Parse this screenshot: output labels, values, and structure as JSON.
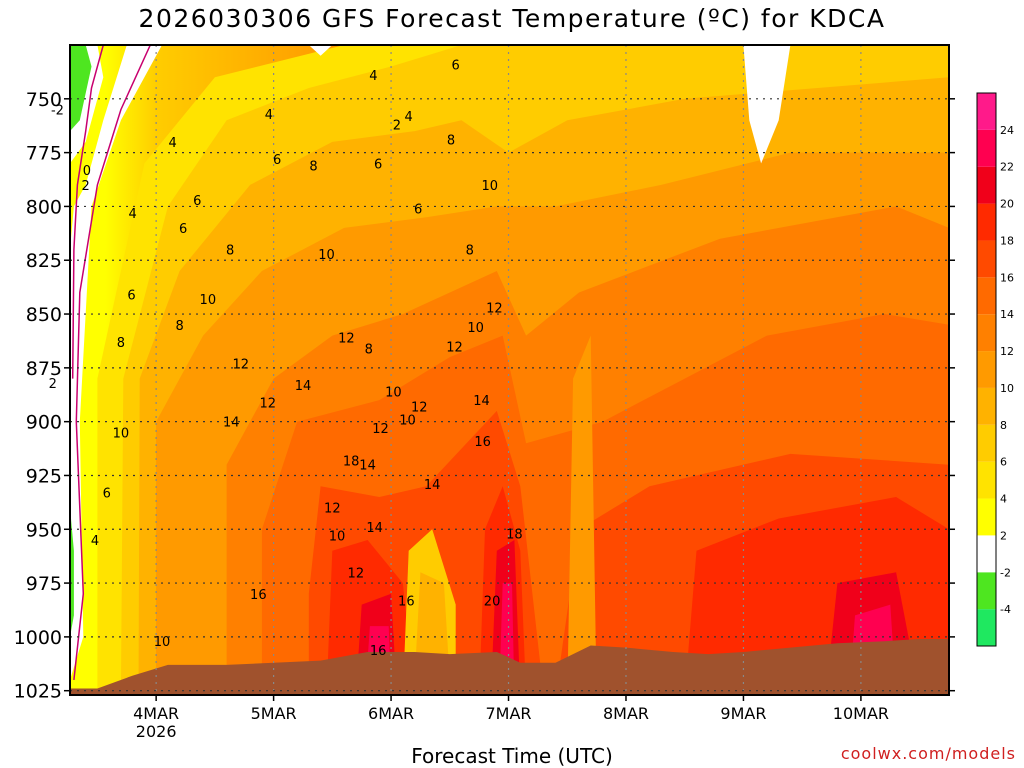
{
  "chart_data": {
    "type": "heatmap",
    "title": "2026030306 GFS Forecast Temperature (ºC) for KDCA",
    "xlabel": "Forecast Time (UTC)",
    "ylabel": "",
    "x_tick_labels": [
      "4MAR",
      "5MAR",
      "6MAR",
      "7MAR",
      "8MAR",
      "9MAR",
      "10MAR"
    ],
    "x_year_label": "2026",
    "y_tick_labels": [
      "750",
      "775",
      "800",
      "825",
      "850",
      "875",
      "900",
      "925",
      "950",
      "975",
      "1000",
      "1025"
    ],
    "y_range_hPa": [
      725,
      1027
    ],
    "y_reversed": true,
    "grid": true,
    "colorbar": {
      "labels": [
        "24",
        "22",
        "20",
        "18",
        "16",
        "14",
        "12",
        "10",
        "8",
        "6",
        "4",
        "2",
        "-2",
        "-4"
      ],
      "levels": [
        -6,
        -4,
        -2,
        2,
        4,
        6,
        8,
        10,
        12,
        14,
        16,
        18,
        20,
        22,
        24,
        26
      ],
      "colors": [
        "#1fe860",
        "#4ee620",
        "#ffffff",
        "#ffff00",
        "#ffe300",
        "#ffcc00",
        "#ffb200",
        "#ff9a00",
        "#ff8000",
        "#ff6a00",
        "#ff4a00",
        "#ff2a00",
        "#f0001a",
        "#ff0050",
        "#ff1a8a"
      ]
    },
    "contour_labels": [
      {
        "value": "-2",
        "x_day": 3.16,
        "p": 755
      },
      {
        "value": "0",
        "x_day": 3.41,
        "p": 783
      },
      {
        "value": "2",
        "x_day": 3.4,
        "p": 790
      },
      {
        "value": "2",
        "x_day": 3.12,
        "p": 882
      },
      {
        "value": "4",
        "x_day": 3.48,
        "p": 955
      },
      {
        "value": "4",
        "x_day": 3.8,
        "p": 803
      },
      {
        "value": "4",
        "x_day": 4.14,
        "p": 770
      },
      {
        "value": "4",
        "x_day": 4.96,
        "p": 757
      },
      {
        "value": "4",
        "x_day": 5.85,
        "p": 739
      },
      {
        "value": "2",
        "x_day": 6.05,
        "p": 762
      },
      {
        "value": "4",
        "x_day": 6.15,
        "p": 758
      },
      {
        "value": "6",
        "x_day": 3.58,
        "p": 933
      },
      {
        "value": "6",
        "x_day": 3.79,
        "p": 841
      },
      {
        "value": "6",
        "x_day": 4.23,
        "p": 810
      },
      {
        "value": "6",
        "x_day": 4.35,
        "p": 797
      },
      {
        "value": "6",
        "x_day": 5.03,
        "p": 778
      },
      {
        "value": "6",
        "x_day": 5.89,
        "p": 780
      },
      {
        "value": "6",
        "x_day": 6.55,
        "p": 734
      },
      {
        "value": "6",
        "x_day": 6.23,
        "p": 801
      },
      {
        "value": "8",
        "x_day": 3.7,
        "p": 863
      },
      {
        "value": "8",
        "x_day": 4.2,
        "p": 855
      },
      {
        "value": "8",
        "x_day": 4.63,
        "p": 820
      },
      {
        "value": "8",
        "x_day": 5.34,
        "p": 781
      },
      {
        "value": "8",
        "x_day": 5.81,
        "p": 866
      },
      {
        "value": "8",
        "x_day": 6.51,
        "p": 769
      },
      {
        "value": "8",
        "x_day": 6.67,
        "p": 820
      },
      {
        "value": "10",
        "x_day": 3.7,
        "p": 905
      },
      {
        "value": "10",
        "x_day": 4.05,
        "p": 1002
      },
      {
        "value": "10",
        "x_day": 4.44,
        "p": 843
      },
      {
        "value": "10",
        "x_day": 5.45,
        "p": 822
      },
      {
        "value": "10",
        "x_day": 5.54,
        "p": 953
      },
      {
        "value": "10",
        "x_day": 6.02,
        "p": 886
      },
      {
        "value": "10",
        "x_day": 6.14,
        "p": 899
      },
      {
        "value": "10",
        "x_day": 6.72,
        "p": 856
      },
      {
        "value": "10",
        "x_day": 6.84,
        "p": 790
      },
      {
        "value": "12",
        "x_day": 4.72,
        "p": 873
      },
      {
        "value": "12",
        "x_day": 4.95,
        "p": 891
      },
      {
        "value": "12",
        "x_day": 5.5,
        "p": 940
      },
      {
        "value": "12",
        "x_day": 5.62,
        "p": 861
      },
      {
        "value": "12",
        "x_day": 5.91,
        "p": 903
      },
      {
        "value": "12",
        "x_day": 5.7,
        "p": 970
      },
      {
        "value": "12",
        "x_day": 6.24,
        "p": 893
      },
      {
        "value": "12",
        "x_day": 6.54,
        "p": 865
      },
      {
        "value": "12",
        "x_day": 6.88,
        "p": 847
      },
      {
        "value": "14",
        "x_day": 4.64,
        "p": 900
      },
      {
        "value": "14",
        "x_day": 5.25,
        "p": 883
      },
      {
        "value": "14",
        "x_day": 5.8,
        "p": 920
      },
      {
        "value": "14",
        "x_day": 5.86,
        "p": 949
      },
      {
        "value": "14",
        "x_day": 6.35,
        "p": 929
      },
      {
        "value": "14",
        "x_day": 6.77,
        "p": 890
      },
      {
        "value": "16",
        "x_day": 4.87,
        "p": 980
      },
      {
        "value": "16",
        "x_day": 5.89,
        "p": 1006
      },
      {
        "value": "16",
        "x_day": 6.13,
        "p": 983
      },
      {
        "value": "16",
        "x_day": 6.78,
        "p": 909
      },
      {
        "value": "18",
        "x_day": 5.66,
        "p": 918
      },
      {
        "value": "18",
        "x_day": 7.05,
        "p": 952
      },
      {
        "value": "20",
        "x_day": 6.86,
        "p": 983
      }
    ]
  },
  "colors": {
    "axis": "#000000",
    "grid": "#888888",
    "ground": "#a0522d",
    "credit": "#d02020"
  },
  "credit": "coolwx.com/models"
}
